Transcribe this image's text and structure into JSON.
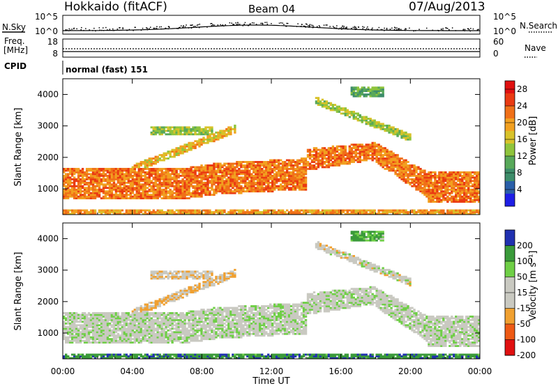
{
  "header": {
    "station": "Hokkaido (fitACF)",
    "beam": "Beam 04",
    "date": "07/Aug/2013"
  },
  "noise_panel": {
    "left_label": "N.Sky",
    "right_label": "N.Search",
    "left_ticks": [
      "10^5",
      "10^0"
    ],
    "right_ticks": [
      "10^5",
      "10^0"
    ]
  },
  "freq_panel": {
    "left_label_1": "Freq.",
    "left_label_2": "[MHz]",
    "right_label": "Nave",
    "left_ticks": [
      "18",
      "8"
    ],
    "right_ticks": [
      "60",
      "0"
    ]
  },
  "cpid": {
    "label": "CPID",
    "value": "normal (fast) 151"
  },
  "chart_data": [
    {
      "type": "heatmap",
      "title": "Power",
      "ylabel": "Slant Range [km]",
      "xlabel": "",
      "x_ticks": [
        "00:00",
        "04:00",
        "08:00",
        "12:00",
        "16:00",
        "20:00",
        "00:00"
      ],
      "y_ticks": [
        "1000",
        "2000",
        "3000",
        "4000"
      ],
      "ylim": [
        180,
        4500
      ],
      "colorbar": {
        "label": "Power [dB]",
        "ticks": [
          "4",
          "8",
          "12",
          "16",
          "20",
          "24",
          "28"
        ],
        "range": [
          0,
          30
        ]
      }
    },
    {
      "type": "heatmap",
      "title": "Velocity",
      "ylabel": "Slant Range [km]",
      "xlabel": "Time UT",
      "x_ticks": [
        "00:00",
        "04:00",
        "08:00",
        "12:00",
        "16:00",
        "20:00",
        "00:00"
      ],
      "y_ticks": [
        "1000",
        "2000",
        "3000",
        "4000"
      ],
      "ylim": [
        180,
        4500
      ],
      "colorbar": {
        "label": "Velocity [m s⁻¹]",
        "ticks": [
          "200",
          "100",
          "50",
          "15",
          "-15",
          "-50",
          "-100",
          "-200"
        ],
        "range": [
          -250,
          250
        ]
      }
    }
  ]
}
